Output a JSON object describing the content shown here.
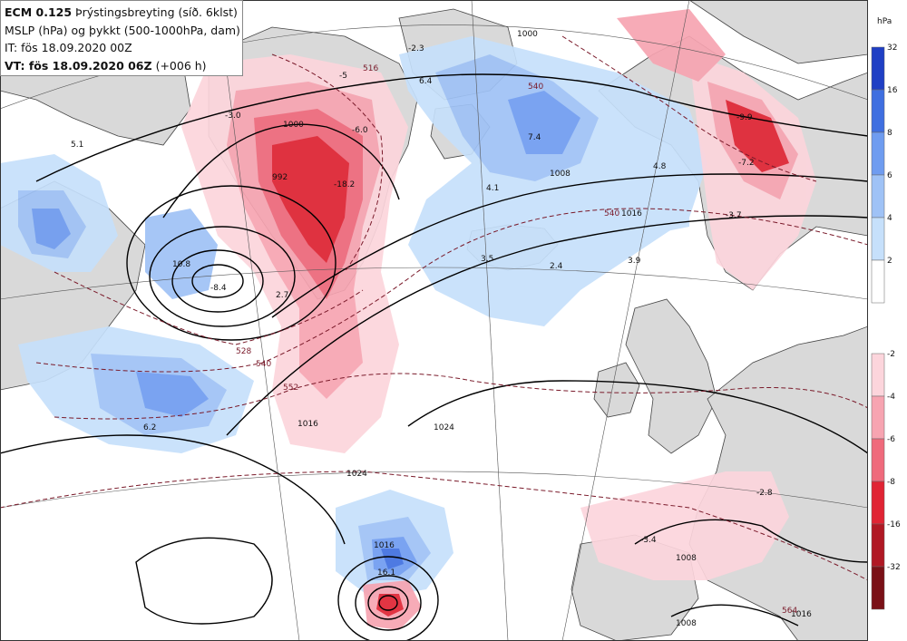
{
  "header": {
    "model": "ECM 0.125",
    "field": "Þrýstingsbreyting (síð. 6klst)",
    "line2": "MSLP (hPa) og þykkt (500-1000hPa, dam)",
    "init": "IT: fös 18.09.2020 00Z",
    "valid_prefix": "VT: fös 18.09.2020 06Z",
    "valid_suffix": "(+006 h)"
  },
  "colorbar": {
    "unit": "hPa",
    "positive": [
      {
        "label": "32",
        "color": "#1f3fc4"
      },
      {
        "label": "16",
        "color": "#3f6fe0"
      },
      {
        "label": "8",
        "color": "#6f9cf0"
      },
      {
        "label": "6",
        "color": "#9fc2f6"
      },
      {
        "label": "4",
        "color": "#c6e0fb"
      },
      {
        "label": "2",
        "color": "#ffffff"
      }
    ],
    "negative": [
      {
        "label": "-2",
        "color": "#fcd5dc"
      },
      {
        "label": "-4",
        "color": "#f7a4b1"
      },
      {
        "label": "-6",
        "color": "#ef6a7c"
      },
      {
        "label": "-8",
        "color": "#e02434"
      },
      {
        "label": "-16",
        "color": "#b01824"
      },
      {
        "label": "-32",
        "color": "#7a1016"
      }
    ]
  },
  "map": {
    "colors": {
      "land": "#d9d9d9",
      "sea": "#ffffff",
      "coast": "#444444",
      "isobar": "#000000",
      "thickness": "#7a1a2a",
      "rise_light": "#c6e0fb",
      "rise_mid": "#9fc2f6",
      "rise_strong": "#6f9cf0",
      "rise_max": "#3f6fe0",
      "fall_light": "#fcd5dc",
      "fall_mid": "#f7a4b1",
      "fall_strong": "#ef6a7c",
      "fall_max": "#e02434"
    },
    "isobar_labels": [
      "1000",
      "992",
      "1008",
      "1016",
      "1016",
      "1024",
      "1024",
      "1016",
      "1008",
      "1008",
      "1016",
      "1000"
    ],
    "thickness_labels": [
      "516",
      "528",
      "540",
      "552",
      "540",
      "564",
      "540"
    ],
    "change_labels": [
      "-2.3",
      "6.4",
      "-3.0",
      "-5",
      "-6.0",
      "-18.2",
      "5.1",
      "10.8",
      "-8.4",
      "7.4",
      "4.1",
      "4.8",
      "-9.9",
      "-7.2",
      "-3.7",
      "3.5",
      "2.4",
      "3.9",
      "6.2",
      "-2.8",
      "-3.4",
      "16.1",
      "2.7"
    ]
  }
}
